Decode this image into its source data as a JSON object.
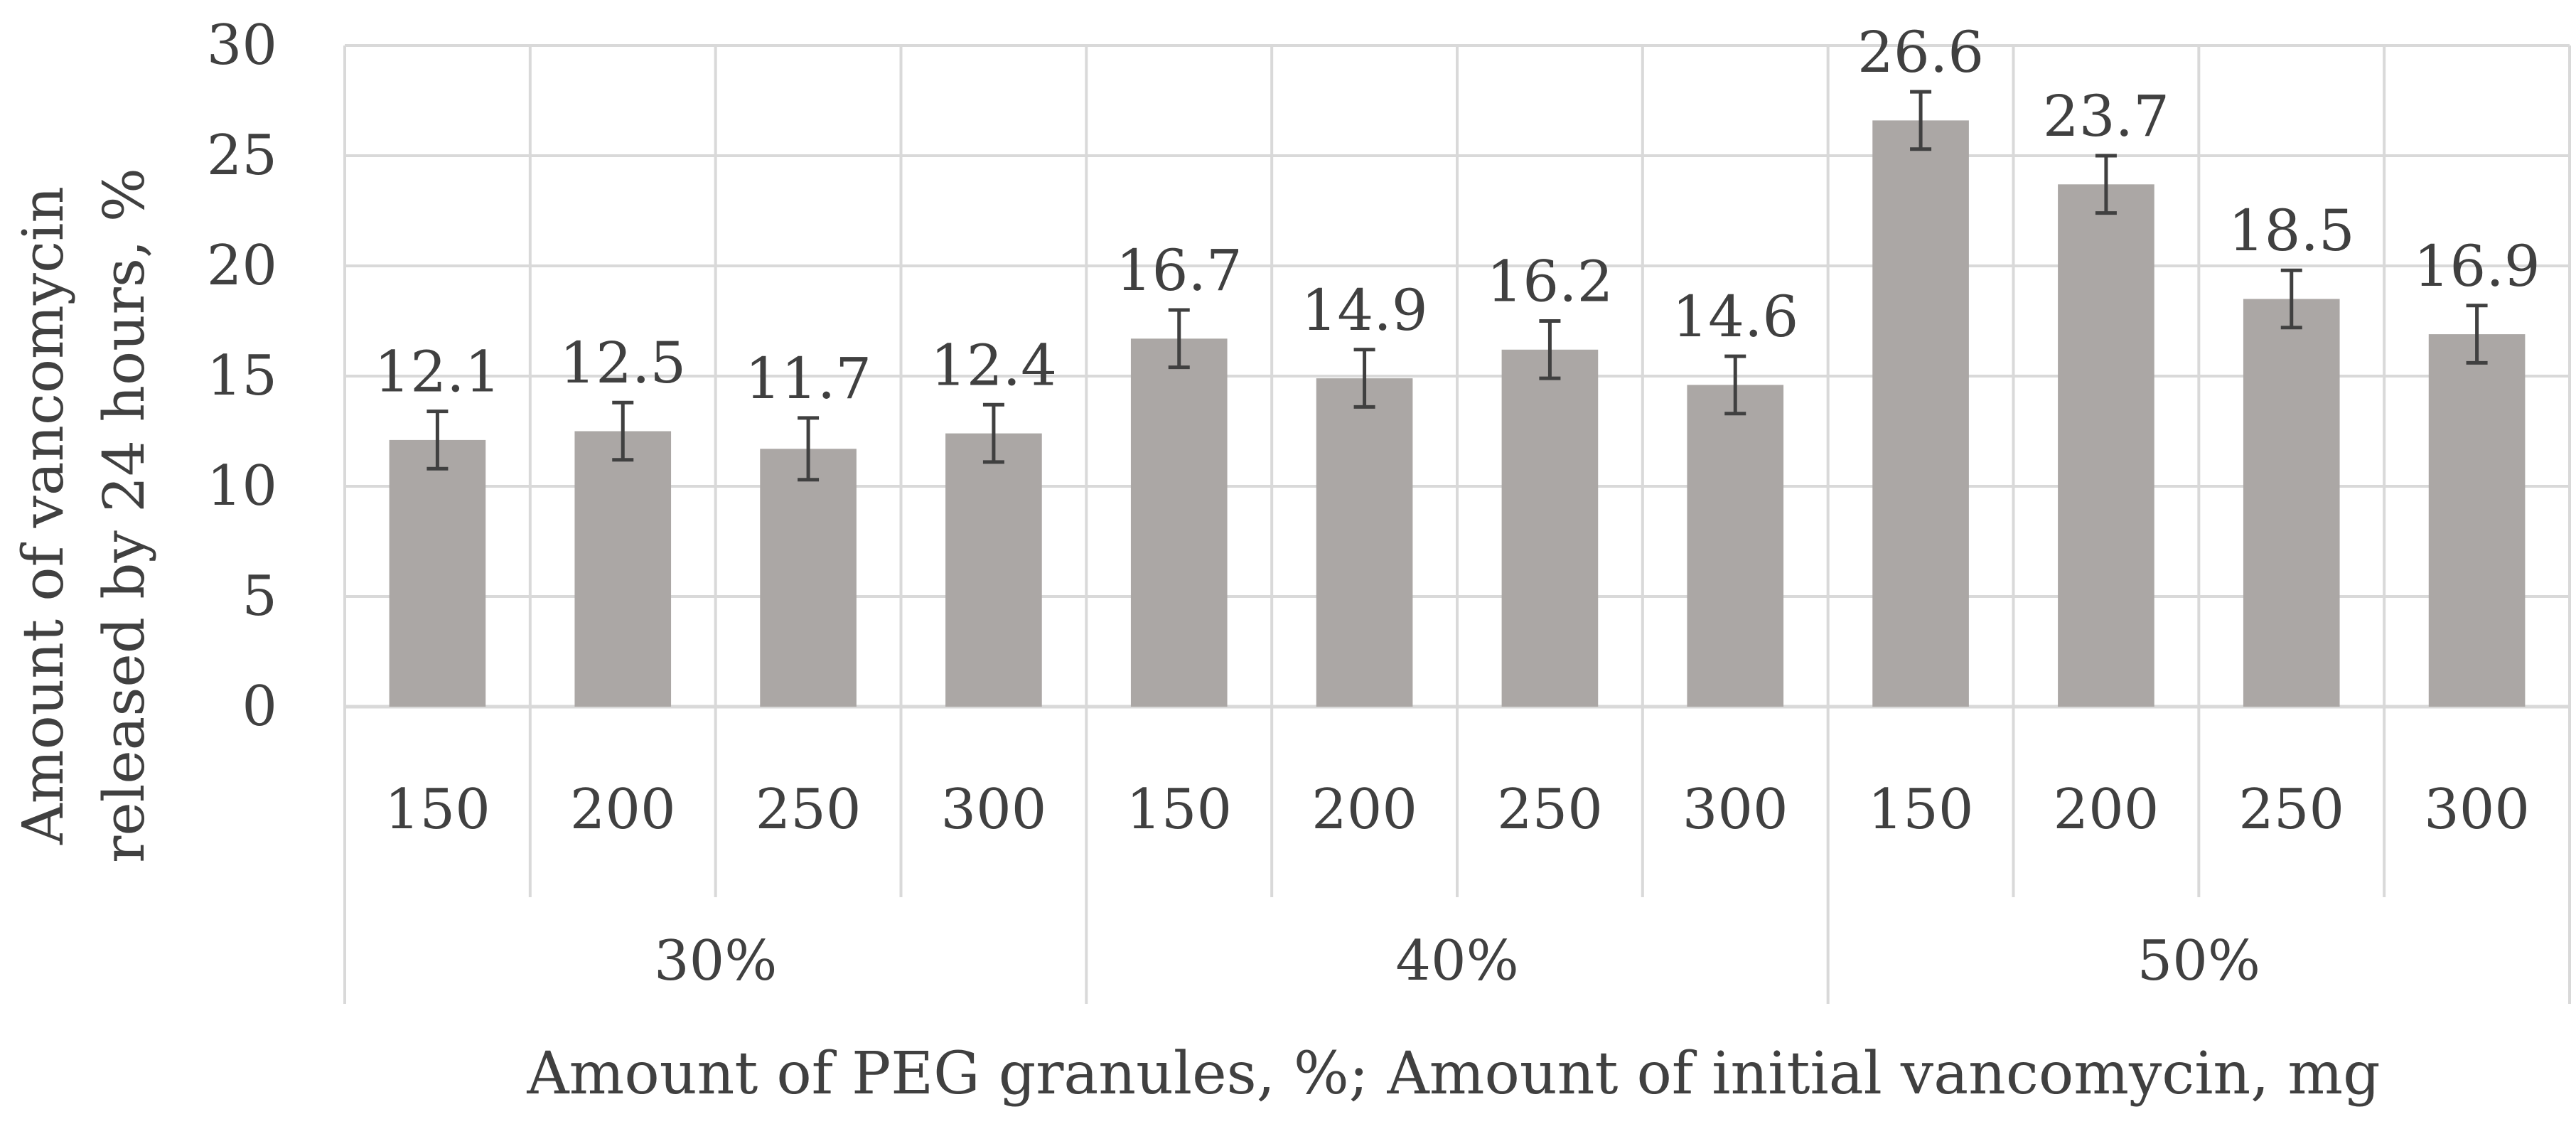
{
  "chart_data": {
    "type": "bar",
    "title": "",
    "xlabel": "Amount of PEG granules, %; Amount of initial vancomycin, mg",
    "ylabel_lines": [
      "Amount of vancomycin",
      "released by 24 hours, %"
    ],
    "ylim": [
      0,
      30
    ],
    "yticks": [
      "0",
      "5",
      "10",
      "15",
      "20",
      "25",
      "30"
    ],
    "grid": true,
    "legend": "none",
    "bar_color": "#aba7a5",
    "error_bar_color": "#404040",
    "groups": [
      {
        "label": "30%",
        "categories": [
          "150",
          "200",
          "250",
          "300"
        ],
        "values": [
          12.1,
          12.5,
          11.7,
          12.4
        ],
        "labels": [
          "12.1",
          "12.5",
          "11.7",
          "12.4"
        ],
        "error": [
          1.3,
          1.3,
          1.4,
          1.3
        ]
      },
      {
        "label": "40%",
        "categories": [
          "150",
          "200",
          "250",
          "300"
        ],
        "values": [
          16.7,
          14.9,
          16.2,
          14.6
        ],
        "labels": [
          "16.7",
          "14.9",
          "16.2",
          "14.6"
        ],
        "error": [
          1.3,
          1.3,
          1.3,
          1.3
        ]
      },
      {
        "label": "50%",
        "categories": [
          "150",
          "200",
          "250",
          "300"
        ],
        "values": [
          26.6,
          23.7,
          18.5,
          16.9
        ],
        "labels": [
          "26.6",
          "23.7",
          "18.5",
          "16.9"
        ],
        "error": [
          1.3,
          1.3,
          1.3,
          1.3
        ]
      }
    ]
  }
}
